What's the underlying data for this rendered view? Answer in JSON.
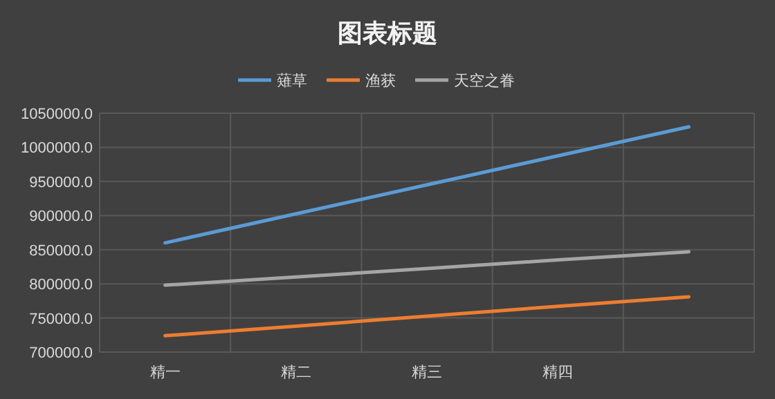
{
  "chart_data": {
    "type": "line",
    "title": "图表标题",
    "categories": [
      "精一",
      "精二",
      "精三",
      "精四",
      null
    ],
    "series": [
      {
        "name": "薙草",
        "color": "#5b9bd5",
        "values": [
          860000,
          902500,
          945000,
          987500,
          1030000
        ]
      },
      {
        "name": "渔获",
        "color": "#ed7d31",
        "values": [
          724000,
          738000,
          752500,
          767000,
          781000
        ]
      },
      {
        "name": "天空之眷",
        "color": "#a5a5a5",
        "values": [
          798000,
          810000,
          822500,
          835000,
          847000
        ]
      }
    ],
    "ylim": [
      700000,
      1050000
    ],
    "yticks": [
      {
        "value": 700000,
        "label": "700000.0"
      },
      {
        "value": 750000,
        "label": "750000.0"
      },
      {
        "value": 800000,
        "label": "800000.0"
      },
      {
        "value": 850000,
        "label": "850000.0"
      },
      {
        "value": 900000,
        "label": "900000.0"
      },
      {
        "value": 950000,
        "label": "950000.0"
      },
      {
        "value": 1000000,
        "label": "1000000.0"
      },
      {
        "value": 1050000,
        "label": "1050000.0"
      }
    ],
    "grid": true,
    "legend": "top",
    "marker": "none",
    "line_style": "solid"
  }
}
